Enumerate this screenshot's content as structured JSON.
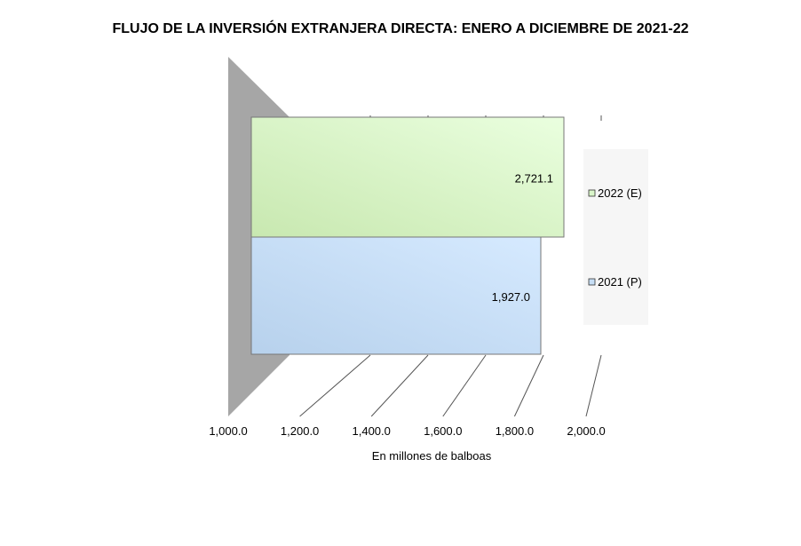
{
  "chart_data": {
    "type": "bar",
    "orientation": "horizontal",
    "title": "FLUJO DE LA INVERSIÓN EXTRANJERA DIRECTA: ENERO A DICIEMBRE DE 2021-22",
    "xlabel": "En millones de balboas",
    "ylabel": "",
    "xlim": [
      1000,
      2000
    ],
    "x_ticks": [
      "1,000.0",
      "1,200.0",
      "1,400.0",
      "1,600.0",
      "1,800.0",
      "2,000.0"
    ],
    "series": [
      {
        "name": "2022 (E)",
        "value": 2721.1,
        "label": "2,721.1",
        "color": "#d9f5c9"
      },
      {
        "name": "2021 (P)",
        "value": 1927.0,
        "label": "1,927.0",
        "color": "#c6def5"
      }
    ],
    "legend_position": "right",
    "grid": true,
    "three_d": true
  }
}
